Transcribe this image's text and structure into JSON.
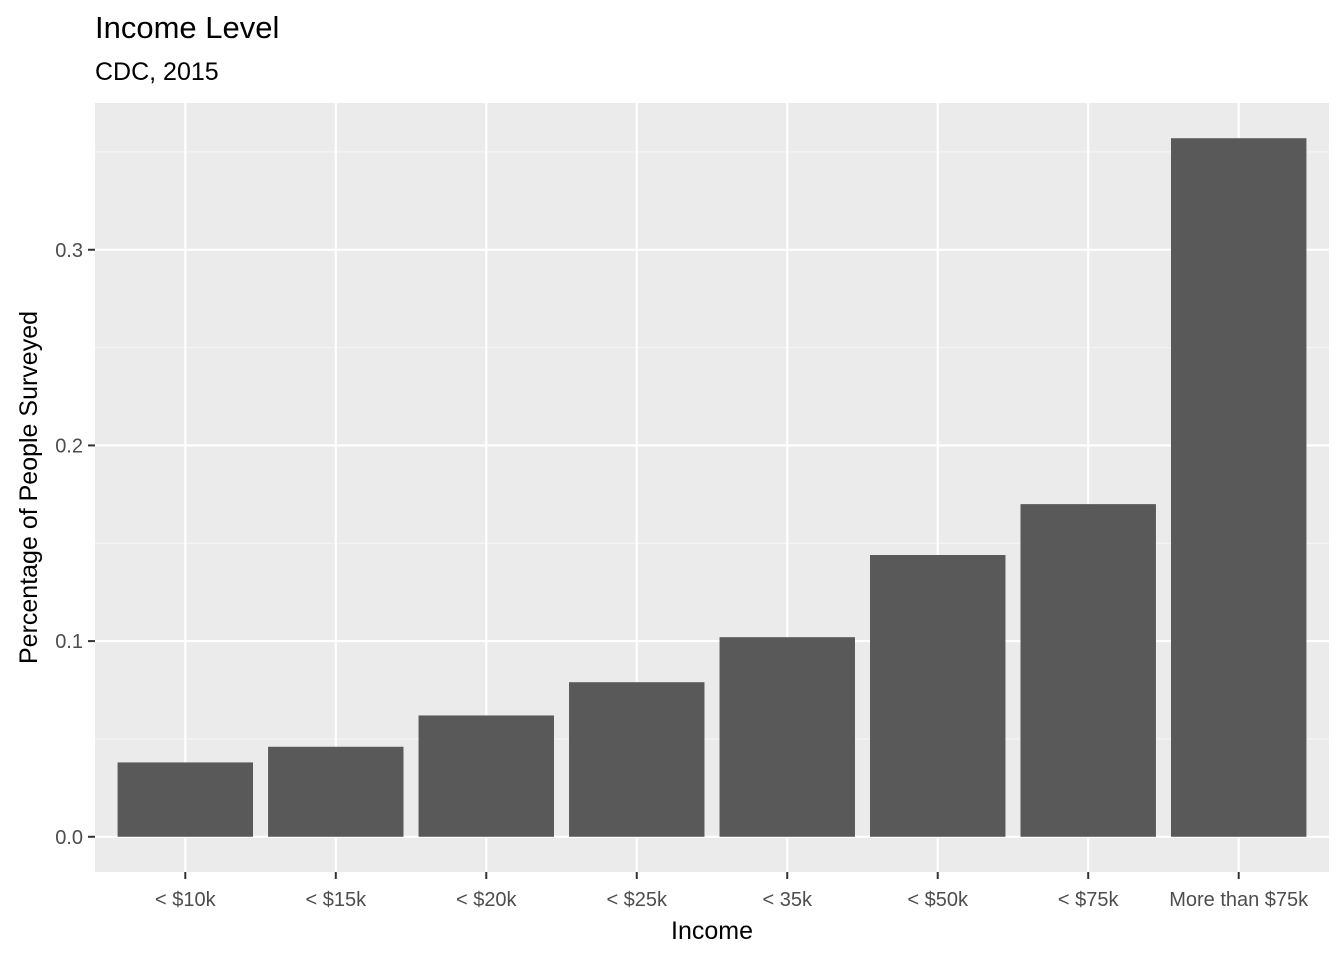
{
  "chart_data": {
    "type": "bar",
    "title": "Income Level",
    "subtitle": "CDC, 2015",
    "xlabel": "Income",
    "ylabel": "Percentage of People Surveyed",
    "categories": [
      "< $10k",
      "< $15k",
      "< $20k",
      "< $25k",
      "< 35k",
      "< $50k",
      "< $75k",
      "More than $75k"
    ],
    "values": [
      0.038,
      0.046,
      0.062,
      0.079,
      0.102,
      0.144,
      0.17,
      0.357
    ],
    "yticks": [
      0.0,
      0.1,
      0.2,
      0.3
    ],
    "ytick_labels": [
      "0.0",
      "0.1",
      "0.2",
      "0.3"
    ],
    "ylim": [
      -0.018,
      0.375
    ],
    "grid": true,
    "colors": {
      "panel_background": "#EBEBEB",
      "grid_major": "#FFFFFF",
      "grid_minor": "#F5F5F5",
      "bar_fill": "#595959",
      "tick_label": "#4D4D4D",
      "axis_title": "#000000"
    }
  }
}
